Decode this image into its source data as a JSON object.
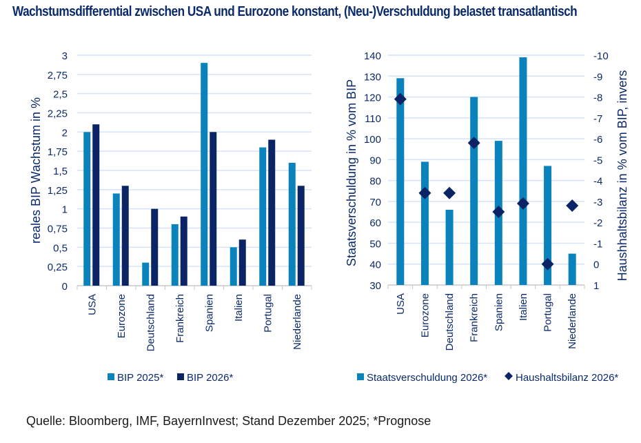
{
  "title": "Wachstumsdifferential zwischen USA und Eurozone konstant, (Neu-)Verschuldung belastet transatlantisch",
  "source": "Quelle: Bloomberg, IMF, BayernInvest; Stand Dezember 2025; *Prognose",
  "colors": {
    "light": "#0a83bd",
    "dark": "#0a2465",
    "grid": "#d6e2f7",
    "text": "#0b2a6b"
  },
  "chart_data": [
    {
      "type": "bar",
      "title": "",
      "ylabel": "reales BIP Wachstum in %",
      "xlabel": "",
      "ylim": [
        0,
        3
      ],
      "yticks": [
        "0",
        "0,25",
        "0,5",
        "0,75",
        "1",
        "1,25",
        "1,5",
        "1,75",
        "2",
        "2,25",
        "2,5",
        "2,75",
        "3"
      ],
      "grid": true,
      "legend": "bottom",
      "categories": [
        "USA",
        "Eurozone",
        "Deutschland",
        "Frankreich",
        "Spanien",
        "Italien",
        "Portugal",
        "Niederlande"
      ],
      "series": [
        {
          "name": "BIP 2025*",
          "values": [
            2.0,
            1.2,
            0.3,
            0.8,
            2.9,
            0.5,
            1.8,
            1.6
          ]
        },
        {
          "name": "BIP 2026*",
          "values": [
            2.1,
            1.3,
            1.0,
            0.9,
            2.0,
            0.6,
            1.9,
            1.3
          ]
        }
      ]
    },
    {
      "type": "bar",
      "title": "",
      "ylabel": "Staatsverschuldung in % vom BIP",
      "y2label": "Haushhaltsbilanz in % vom BIP, invers",
      "xlabel": "",
      "ylim": [
        30,
        140
      ],
      "y2lim": [
        1,
        -10
      ],
      "yticks": [
        "30",
        "40",
        "50",
        "60",
        "70",
        "80",
        "90",
        "100",
        "110",
        "120",
        "130",
        "140"
      ],
      "y2ticks": [
        "1",
        "0",
        "-1",
        "-2",
        "-3",
        "-4",
        "-5",
        "-6",
        "-7",
        "-8",
        "-9",
        "-10"
      ],
      "grid": true,
      "legend": "bottom",
      "categories": [
        "USA",
        "Eurozone",
        "Deutschland",
        "Frankreich",
        "Spanien",
        "Italien",
        "Portugal",
        "Niederlande"
      ],
      "series": [
        {
          "name": "Staatsverschuldung 2026*",
          "kind": "bar",
          "axis": "left",
          "values": [
            129,
            89,
            66,
            120,
            99,
            139,
            87,
            45
          ]
        },
        {
          "name": "Haushaltsbilanz 2026*",
          "kind": "diamond",
          "axis": "right",
          "values": [
            -7.9,
            -3.4,
            -3.4,
            -5.8,
            -2.5,
            -2.9,
            0.0,
            -2.8
          ]
        }
      ]
    }
  ]
}
